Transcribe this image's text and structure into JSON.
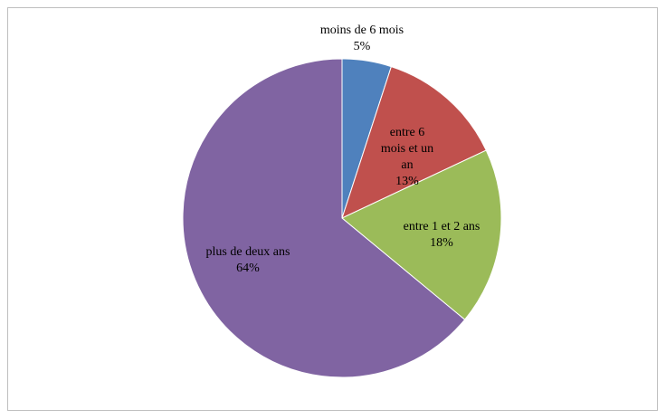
{
  "chart_data": {
    "type": "pie",
    "title": "",
    "categories": [
      "moins de 6 mois",
      "entre 6 mois et un an",
      "entre 1 et 2 ans",
      "plus de deux ans"
    ],
    "values": [
      5,
      13,
      18,
      64
    ],
    "value_labels": [
      "5%",
      "13%",
      "18%",
      "64%"
    ],
    "colors": [
      "#4F81BD",
      "#C0504D",
      "#9BBB59",
      "#8064A2"
    ],
    "legend": "none",
    "label_lines": [
      [
        "moins de 6 mois",
        "5%"
      ],
      [
        "entre 6",
        "mois et un",
        "an",
        "13%"
      ],
      [
        "entre 1 et 2 ans",
        "18%"
      ],
      [
        "plus de deux ans",
        "64%"
      ]
    ]
  }
}
